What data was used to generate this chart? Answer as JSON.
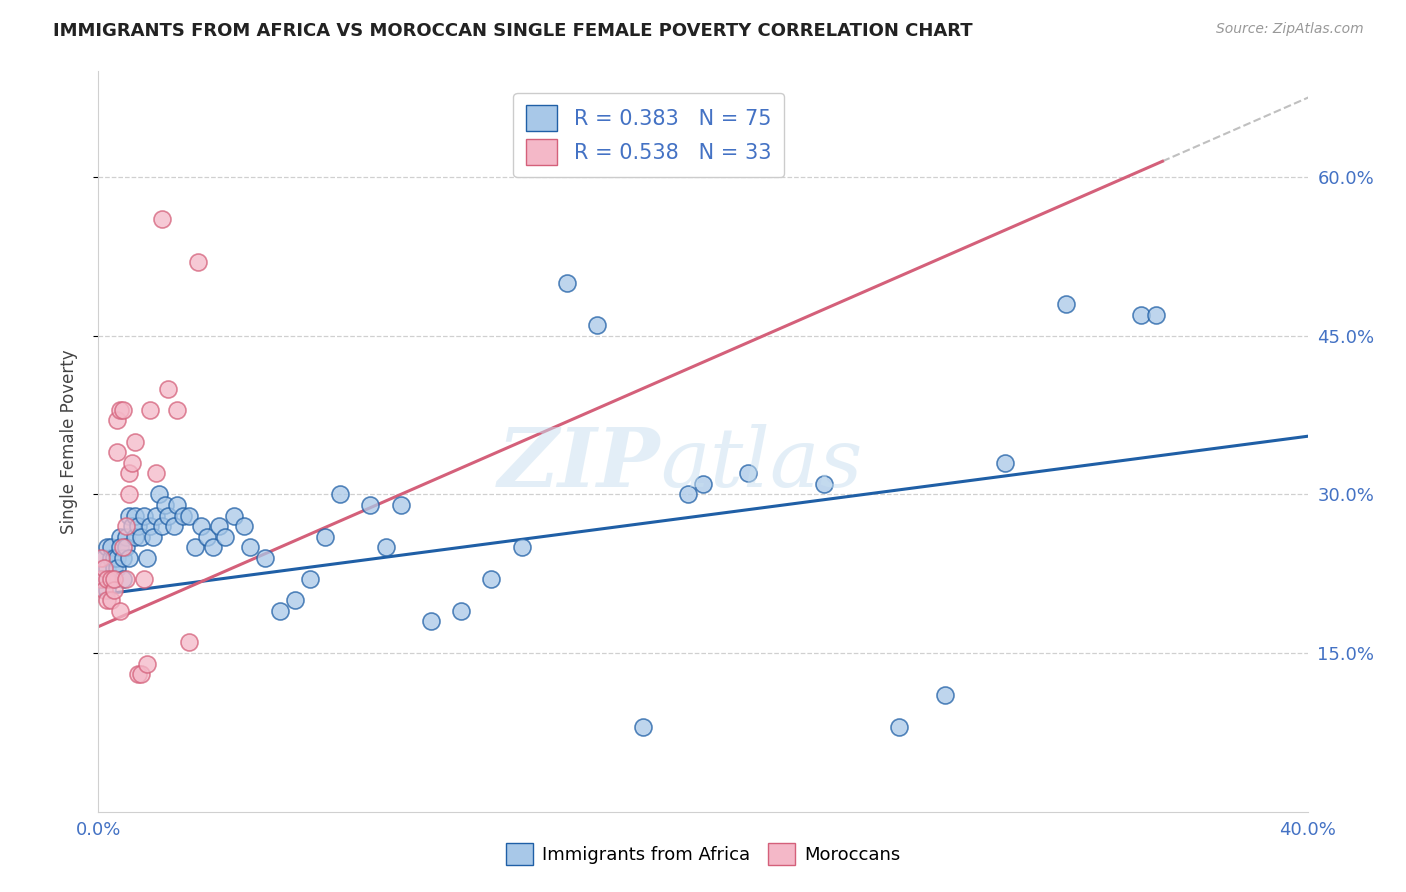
{
  "title": "IMMIGRANTS FROM AFRICA VS MOROCCAN SINGLE FEMALE POVERTY CORRELATION CHART",
  "source": "Source: ZipAtlas.com",
  "ylabel": "Single Female Poverty",
  "xlim": [
    0.0,
    0.4
  ],
  "ylim": [
    0.0,
    0.7
  ],
  "color_blue": "#a8c8e8",
  "color_pink": "#f4b8c8",
  "line_blue": "#1f5fa6",
  "line_pink": "#d4607a",
  "line_gray": "#c0c0c0",
  "blue_scatter_x": [
    0.001,
    0.002,
    0.002,
    0.003,
    0.003,
    0.003,
    0.004,
    0.004,
    0.004,
    0.005,
    0.005,
    0.005,
    0.006,
    0.006,
    0.007,
    0.007,
    0.008,
    0.008,
    0.009,
    0.009,
    0.01,
    0.01,
    0.011,
    0.012,
    0.012,
    0.013,
    0.014,
    0.015,
    0.016,
    0.017,
    0.018,
    0.019,
    0.02,
    0.021,
    0.022,
    0.023,
    0.025,
    0.026,
    0.028,
    0.03,
    0.032,
    0.034,
    0.036,
    0.038,
    0.04,
    0.042,
    0.045,
    0.048,
    0.05,
    0.055,
    0.06,
    0.065,
    0.07,
    0.075,
    0.08,
    0.09,
    0.095,
    0.1,
    0.11,
    0.12,
    0.13,
    0.14,
    0.155,
    0.165,
    0.18,
    0.195,
    0.2,
    0.215,
    0.24,
    0.265,
    0.28,
    0.3,
    0.32,
    0.345,
    0.35
  ],
  "blue_scatter_y": [
    0.22,
    0.24,
    0.22,
    0.25,
    0.23,
    0.21,
    0.24,
    0.22,
    0.25,
    0.23,
    0.24,
    0.22,
    0.24,
    0.23,
    0.26,
    0.25,
    0.24,
    0.22,
    0.26,
    0.25,
    0.28,
    0.24,
    0.27,
    0.26,
    0.28,
    0.27,
    0.26,
    0.28,
    0.24,
    0.27,
    0.26,
    0.28,
    0.3,
    0.27,
    0.29,
    0.28,
    0.27,
    0.29,
    0.28,
    0.28,
    0.25,
    0.27,
    0.26,
    0.25,
    0.27,
    0.26,
    0.28,
    0.27,
    0.25,
    0.24,
    0.19,
    0.2,
    0.22,
    0.26,
    0.3,
    0.29,
    0.25,
    0.29,
    0.18,
    0.19,
    0.22,
    0.25,
    0.5,
    0.46,
    0.08,
    0.3,
    0.31,
    0.32,
    0.31,
    0.08,
    0.11,
    0.33,
    0.48,
    0.47,
    0.47
  ],
  "pink_scatter_x": [
    0.001,
    0.001,
    0.002,
    0.002,
    0.003,
    0.003,
    0.004,
    0.004,
    0.005,
    0.005,
    0.006,
    0.006,
    0.007,
    0.007,
    0.008,
    0.008,
    0.009,
    0.009,
    0.01,
    0.01,
    0.011,
    0.012,
    0.013,
    0.014,
    0.015,
    0.016,
    0.017,
    0.019,
    0.021,
    0.023,
    0.026,
    0.03,
    0.033
  ],
  "pink_scatter_y": [
    0.22,
    0.24,
    0.21,
    0.23,
    0.2,
    0.22,
    0.2,
    0.22,
    0.21,
    0.22,
    0.34,
    0.37,
    0.38,
    0.19,
    0.38,
    0.25,
    0.22,
    0.27,
    0.3,
    0.32,
    0.33,
    0.35,
    0.13,
    0.13,
    0.22,
    0.14,
    0.38,
    0.32,
    0.56,
    0.4,
    0.38,
    0.16,
    0.52
  ],
  "blue_line_x0": 0.0,
  "blue_line_y0": 0.205,
  "blue_line_x1": 0.4,
  "blue_line_y1": 0.355,
  "pink_line_x0": 0.0,
  "pink_line_y0": 0.175,
  "pink_line_x1": 0.4,
  "pink_line_y1": 0.675
}
